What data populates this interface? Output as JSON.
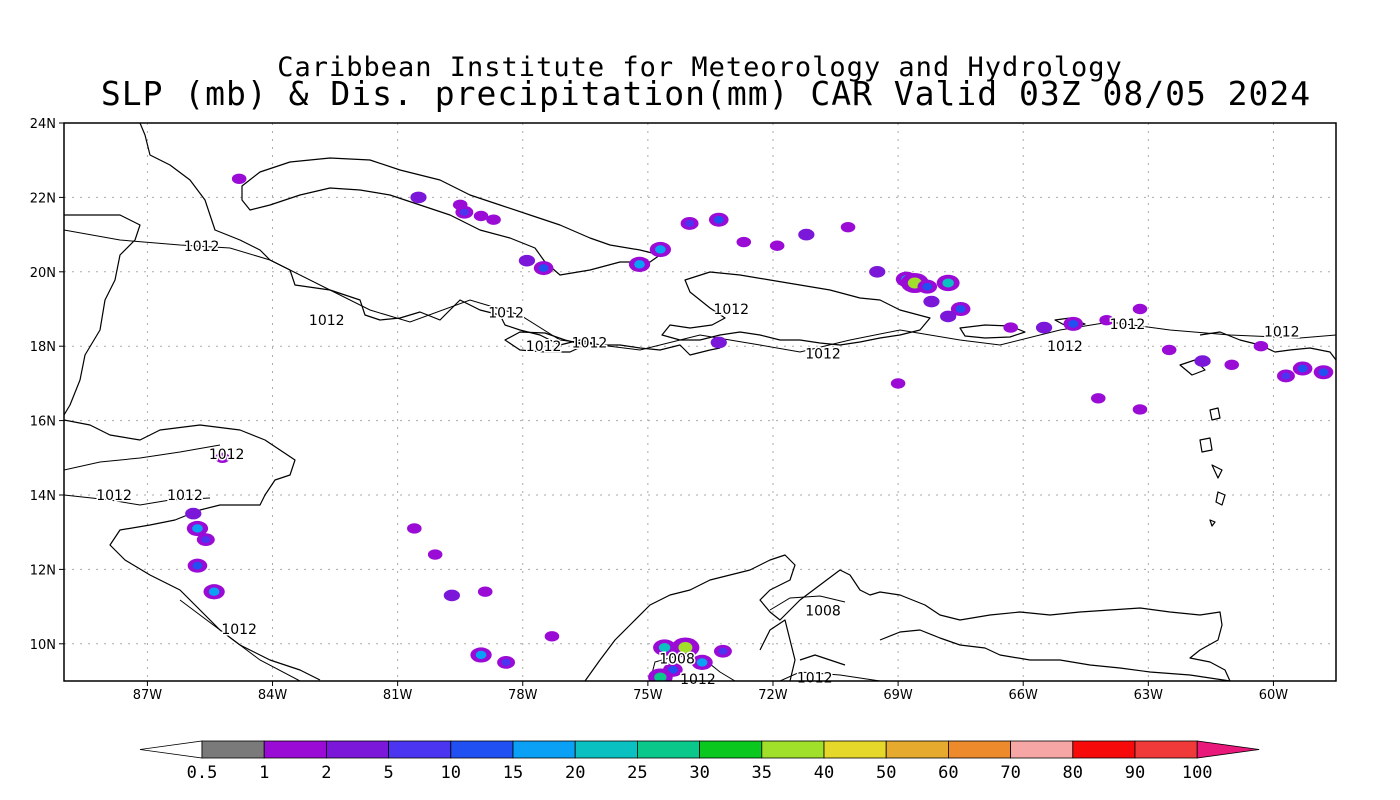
{
  "title_line1": "Caribbean Institute for Meteorology and Hydrology",
  "title_line2": "SLP (mb) & Dis. precipitation(mm) CAR Valid 03Z 08/05 2024",
  "map": {
    "lon_range": [
      -89,
      -58.5
    ],
    "lat_range": [
      9,
      24
    ],
    "grid": "dotted",
    "x_ticks": [
      {
        "lon": -87,
        "label": "87W"
      },
      {
        "lon": -84,
        "label": "84W"
      },
      {
        "lon": -81,
        "label": "81W"
      },
      {
        "lon": -78,
        "label": "78W"
      },
      {
        "lon": -75,
        "label": "75W"
      },
      {
        "lon": -72,
        "label": "72W"
      },
      {
        "lon": -69,
        "label": "69W"
      },
      {
        "lon": -66,
        "label": "66W"
      },
      {
        "lon": -63,
        "label": "63W"
      },
      {
        "lon": -60,
        "label": "60W"
      }
    ],
    "y_ticks": [
      {
        "lat": 24,
        "label": "24N"
      },
      {
        "lat": 22,
        "label": "22N"
      },
      {
        "lat": 20,
        "label": "20N"
      },
      {
        "lat": 18,
        "label": "18N"
      },
      {
        "lat": 16,
        "label": "16N"
      },
      {
        "lat": 14,
        "label": "14N"
      },
      {
        "lat": 12,
        "label": "12N"
      },
      {
        "lat": 10,
        "label": "10N"
      }
    ],
    "isobar_labels": [
      {
        "lon": -85.7,
        "lat": 20.7,
        "text": "1012"
      },
      {
        "lon": -82.7,
        "lat": 18.7,
        "text": "1012"
      },
      {
        "lon": -78.4,
        "lat": 18.9,
        "text": "1012"
      },
      {
        "lon": -77.5,
        "lat": 18.0,
        "text": "1012"
      },
      {
        "lon": -76.4,
        "lat": 18.1,
        "text": "1012"
      },
      {
        "lon": -73.0,
        "lat": 19.0,
        "text": "1012"
      },
      {
        "lon": -70.8,
        "lat": 17.8,
        "text": "1012"
      },
      {
        "lon": -65.0,
        "lat": 18.0,
        "text": "1012"
      },
      {
        "lon": -63.5,
        "lat": 18.6,
        "text": "1012"
      },
      {
        "lon": -59.8,
        "lat": 18.4,
        "text": "1012"
      },
      {
        "lon": -85.1,
        "lat": 15.1,
        "text": "1012"
      },
      {
        "lon": -87.8,
        "lat": 14.0,
        "text": "1012"
      },
      {
        "lon": -86.1,
        "lat": 14.0,
        "text": "1012"
      },
      {
        "lon": -84.8,
        "lat": 10.4,
        "text": "1012"
      },
      {
        "lon": -70.8,
        "lat": 10.9,
        "text": "1008"
      },
      {
        "lon": -74.3,
        "lat": 9.6,
        "text": "1008"
      },
      {
        "lon": -73.8,
        "lat": 9.05,
        "text": "1012"
      },
      {
        "lon": -71.0,
        "lat": 9.1,
        "text": "1012"
      }
    ]
  },
  "colorbar": {
    "labels": [
      "0.5",
      "1",
      "2",
      "5",
      "10",
      "15",
      "20",
      "25",
      "30",
      "35",
      "40",
      "50",
      "60",
      "70",
      "80",
      "90",
      "100"
    ],
    "colors": [
      "#ffffff",
      "#7a7a7a",
      "#9b0bd6",
      "#7a17d8",
      "#4b35f0",
      "#2050f2",
      "#0aa0f5",
      "#0bc0c0",
      "#0ac88a",
      "#0ac81e",
      "#a0e02a",
      "#e5d82a",
      "#e6aa2e",
      "#ec8a2c",
      "#f7a6a6",
      "#f70a0a",
      "#f03a3a",
      "#e8197a"
    ]
  },
  "precip_cells": [
    {
      "lon": -84.8,
      "lat": 22.5,
      "level": 2
    },
    {
      "lon": -80.5,
      "lat": 22.0,
      "level": 3
    },
    {
      "lon": -79.5,
      "lat": 21.8,
      "level": 2
    },
    {
      "lon": -79.4,
      "lat": 21.6,
      "level": 4
    },
    {
      "lon": -79.0,
      "lat": 21.5,
      "level": 2
    },
    {
      "lon": -78.7,
      "lat": 21.4,
      "level": 2
    },
    {
      "lon": -77.9,
      "lat": 20.3,
      "level": 3
    },
    {
      "lon": -77.5,
      "lat": 20.1,
      "level": 5
    },
    {
      "lon": -75.2,
      "lat": 20.2,
      "level": 6
    },
    {
      "lon": -74.7,
      "lat": 20.6,
      "level": 6
    },
    {
      "lon": -74.0,
      "lat": 21.3,
      "level": 4
    },
    {
      "lon": -73.3,
      "lat": 21.4,
      "level": 5
    },
    {
      "lon": -72.7,
      "lat": 20.8,
      "level": 2
    },
    {
      "lon": -71.9,
      "lat": 20.7,
      "level": 2
    },
    {
      "lon": -71.2,
      "lat": 21.0,
      "level": 3
    },
    {
      "lon": -70.2,
      "lat": 21.2,
      "level": 2
    },
    {
      "lon": -69.5,
      "lat": 20.0,
      "level": 3
    },
    {
      "lon": -68.8,
      "lat": 19.8,
      "level": 6
    },
    {
      "lon": -68.6,
      "lat": 19.7,
      "level": 10
    },
    {
      "lon": -68.3,
      "lat": 19.6,
      "level": 5
    },
    {
      "lon": -67.8,
      "lat": 19.7,
      "level": 7
    },
    {
      "lon": -68.2,
      "lat": 19.2,
      "level": 3
    },
    {
      "lon": -67.5,
      "lat": 19.0,
      "level": 5
    },
    {
      "lon": -67.8,
      "lat": 18.8,
      "level": 3
    },
    {
      "lon": -66.3,
      "lat": 18.5,
      "level": 2
    },
    {
      "lon": -65.5,
      "lat": 18.5,
      "level": 3
    },
    {
      "lon": -64.8,
      "lat": 18.6,
      "level": 5
    },
    {
      "lon": -64.0,
      "lat": 18.7,
      "level": 2
    },
    {
      "lon": -63.2,
      "lat": 19.0,
      "level": 2
    },
    {
      "lon": -62.5,
      "lat": 17.9,
      "level": 2
    },
    {
      "lon": -61.7,
      "lat": 17.6,
      "level": 3
    },
    {
      "lon": -61.0,
      "lat": 17.5,
      "level": 2
    },
    {
      "lon": -59.7,
      "lat": 17.2,
      "level": 4
    },
    {
      "lon": -59.3,
      "lat": 17.4,
      "level": 5
    },
    {
      "lon": -58.8,
      "lat": 17.3,
      "level": 5
    },
    {
      "lon": -60.3,
      "lat": 18.0,
      "level": 2
    },
    {
      "lon": -63.2,
      "lat": 16.3,
      "level": 2
    },
    {
      "lon": -64.2,
      "lat": 16.6,
      "level": 2
    },
    {
      "lon": -69.0,
      "lat": 17.0,
      "level": 2
    },
    {
      "lon": -73.3,
      "lat": 18.1,
      "level": 3
    },
    {
      "lon": -85.9,
      "lat": 13.5,
      "level": 3
    },
    {
      "lon": -85.8,
      "lat": 13.1,
      "level": 6
    },
    {
      "lon": -85.6,
      "lat": 12.8,
      "level": 4
    },
    {
      "lon": -85.8,
      "lat": 12.1,
      "level": 5
    },
    {
      "lon": -85.4,
      "lat": 11.4,
      "level": 6
    },
    {
      "lon": -85.2,
      "lat": 15.0,
      "level": 2
    },
    {
      "lon": -80.6,
      "lat": 13.1,
      "level": 2
    },
    {
      "lon": -80.1,
      "lat": 12.4,
      "level": 2
    },
    {
      "lon": -79.7,
      "lat": 11.3,
      "level": 3
    },
    {
      "lon": -78.9,
      "lat": 11.4,
      "level": 2
    },
    {
      "lon": -79.0,
      "lat": 9.7,
      "level": 6
    },
    {
      "lon": -78.4,
      "lat": 9.5,
      "level": 4
    },
    {
      "lon": -77.3,
      "lat": 10.2,
      "level": 2
    },
    {
      "lon": -74.6,
      "lat": 9.9,
      "level": 7
    },
    {
      "lon": -74.1,
      "lat": 9.9,
      "level": 10
    },
    {
      "lon": -73.7,
      "lat": 9.5,
      "level": 6
    },
    {
      "lon": -74.4,
      "lat": 9.3,
      "level": 5
    },
    {
      "lon": -73.2,
      "lat": 9.8,
      "level": 4
    },
    {
      "lon": -74.7,
      "lat": 9.1,
      "level": 8
    }
  ]
}
